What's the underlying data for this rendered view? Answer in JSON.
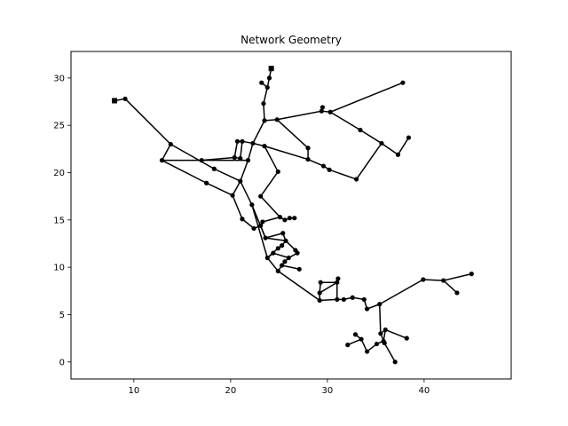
{
  "chart_data": {
    "type": "scatter",
    "title": "Network Geometry",
    "xlabel": "",
    "ylabel": "",
    "xlim": [
      3.5,
      49
    ],
    "ylim": [
      -1.8,
      32.8
    ],
    "xticks": [
      10,
      20,
      30,
      40
    ],
    "yticks": [
      0,
      5,
      10,
      15,
      20,
      25,
      30
    ],
    "grid": false,
    "legend": "none",
    "colors": {
      "line": "#000000",
      "node": "#000000",
      "frame": "#000000"
    },
    "reservoirs": [
      {
        "id": "R1",
        "x": 8.0,
        "y": 27.6
      },
      {
        "id": "R2",
        "x": 24.2,
        "y": 31.0
      }
    ],
    "nodes": [
      {
        "id": "a1",
        "x": 9.1,
        "y": 27.8
      },
      {
        "id": "a2",
        "x": 13.8,
        "y": 23.0
      },
      {
        "id": "a3",
        "x": 12.9,
        "y": 21.3
      },
      {
        "id": "a4",
        "x": 18.3,
        "y": 20.4
      },
      {
        "id": "a5",
        "x": 17.5,
        "y": 18.9
      },
      {
        "id": "a6",
        "x": 20.2,
        "y": 17.6
      },
      {
        "id": "a7",
        "x": 17.0,
        "y": 21.3
      },
      {
        "id": "a8",
        "x": 21.0,
        "y": 19.1
      },
      {
        "id": "b1",
        "x": 24.0,
        "y": 30.0
      },
      {
        "id": "b2",
        "x": 23.2,
        "y": 29.5
      },
      {
        "id": "b3",
        "x": 23.8,
        "y": 29.0
      },
      {
        "id": "b4",
        "x": 23.4,
        "y": 27.3
      },
      {
        "id": "b5",
        "x": 23.5,
        "y": 25.5
      },
      {
        "id": "b6",
        "x": 24.8,
        "y": 25.6
      },
      {
        "id": "b7",
        "x": 22.3,
        "y": 23.1
      },
      {
        "id": "b8",
        "x": 23.5,
        "y": 22.8
      },
      {
        "id": "b9",
        "x": 20.7,
        "y": 23.3
      },
      {
        "id": "b10",
        "x": 21.2,
        "y": 23.3
      },
      {
        "id": "b11",
        "x": 20.4,
        "y": 21.6
      },
      {
        "id": "b12",
        "x": 21.0,
        "y": 21.5
      },
      {
        "id": "b13",
        "x": 21.8,
        "y": 21.3
      },
      {
        "id": "b14",
        "x": 24.9,
        "y": 20.1
      },
      {
        "id": "b15",
        "x": 23.1,
        "y": 17.5
      },
      {
        "id": "c1",
        "x": 29.5,
        "y": 26.9
      },
      {
        "id": "c2",
        "x": 29.4,
        "y": 26.5
      },
      {
        "id": "c3",
        "x": 30.3,
        "y": 26.4
      },
      {
        "id": "c4",
        "x": 37.8,
        "y": 29.5
      },
      {
        "id": "c5",
        "x": 33.4,
        "y": 24.5
      },
      {
        "id": "c6",
        "x": 35.6,
        "y": 23.1
      },
      {
        "id": "c7",
        "x": 37.3,
        "y": 21.9
      },
      {
        "id": "c8",
        "x": 38.4,
        "y": 23.7
      },
      {
        "id": "c9",
        "x": 28.0,
        "y": 22.6
      },
      {
        "id": "c10",
        "x": 28.0,
        "y": 21.4
      },
      {
        "id": "c11",
        "x": 29.6,
        "y": 20.7
      },
      {
        "id": "c12",
        "x": 30.2,
        "y": 20.3
      },
      {
        "id": "c13",
        "x": 33.0,
        "y": 19.3
      },
      {
        "id": "d1",
        "x": 21.2,
        "y": 15.1
      },
      {
        "id": "d2",
        "x": 22.2,
        "y": 16.6
      },
      {
        "id": "d3",
        "x": 22.4,
        "y": 14.1
      },
      {
        "id": "d4",
        "x": 23.1,
        "y": 14.4
      },
      {
        "id": "d5",
        "x": 23.3,
        "y": 14.8
      },
      {
        "id": "d6",
        "x": 25.1,
        "y": 15.3
      },
      {
        "id": "d7",
        "x": 25.6,
        "y": 15.0
      },
      {
        "id": "d8",
        "x": 26.1,
        "y": 15.2
      },
      {
        "id": "d9",
        "x": 26.6,
        "y": 15.2
      },
      {
        "id": "d10",
        "x": 23.6,
        "y": 13.1
      },
      {
        "id": "d11",
        "x": 25.4,
        "y": 13.6
      },
      {
        "id": "d12",
        "x": 25.7,
        "y": 12.8
      },
      {
        "id": "d13",
        "x": 25.3,
        "y": 12.3
      },
      {
        "id": "d14",
        "x": 24.9,
        "y": 12.0
      },
      {
        "id": "d15",
        "x": 26.7,
        "y": 11.8
      },
      {
        "id": "d16",
        "x": 26.9,
        "y": 11.5
      },
      {
        "id": "d17",
        "x": 24.4,
        "y": 11.5
      },
      {
        "id": "d18",
        "x": 23.8,
        "y": 11.0
      },
      {
        "id": "d19",
        "x": 26.0,
        "y": 11.0
      },
      {
        "id": "d20",
        "x": 25.6,
        "y": 10.6
      },
      {
        "id": "d21",
        "x": 25.3,
        "y": 10.2
      },
      {
        "id": "d22",
        "x": 24.9,
        "y": 9.6
      },
      {
        "id": "d23",
        "x": 27.1,
        "y": 9.8
      },
      {
        "id": "e1",
        "x": 29.3,
        "y": 8.4
      },
      {
        "id": "e2",
        "x": 31.1,
        "y": 8.8
      },
      {
        "id": "e3",
        "x": 31.0,
        "y": 8.4
      },
      {
        "id": "e4",
        "x": 29.2,
        "y": 7.3
      },
      {
        "id": "e5",
        "x": 29.2,
        "y": 6.5
      },
      {
        "id": "e6",
        "x": 31.0,
        "y": 6.6
      },
      {
        "id": "e7",
        "x": 31.7,
        "y": 6.6
      },
      {
        "id": "e8",
        "x": 32.6,
        "y": 6.8
      },
      {
        "id": "e9",
        "x": 33.8,
        "y": 6.6
      },
      {
        "id": "f1",
        "x": 34.1,
        "y": 5.6
      },
      {
        "id": "f2",
        "x": 35.4,
        "y": 6.1
      },
      {
        "id": "f3",
        "x": 39.9,
        "y": 8.7
      },
      {
        "id": "f4",
        "x": 42.0,
        "y": 8.6
      },
      {
        "id": "f5",
        "x": 43.4,
        "y": 7.3
      },
      {
        "id": "f6",
        "x": 44.9,
        "y": 9.3
      },
      {
        "id": "f7",
        "x": 35.5,
        "y": 3.0
      },
      {
        "id": "f8",
        "x": 36.0,
        "y": 3.4
      },
      {
        "id": "f9",
        "x": 38.2,
        "y": 2.5
      },
      {
        "id": "f10",
        "x": 32.1,
        "y": 1.8
      },
      {
        "id": "f11",
        "x": 32.9,
        "y": 2.9
      },
      {
        "id": "f12",
        "x": 33.5,
        "y": 2.4
      },
      {
        "id": "f13",
        "x": 34.1,
        "y": 1.1
      },
      {
        "id": "f14",
        "x": 35.1,
        "y": 1.9
      },
      {
        "id": "f15",
        "x": 35.8,
        "y": 2.2
      },
      {
        "id": "f16",
        "x": 35.9,
        "y": 2.0
      },
      {
        "id": "f17",
        "x": 37.0,
        "y": 0.0
      }
    ],
    "edges": [
      [
        "R1",
        "a1"
      ],
      [
        "a1",
        "a2"
      ],
      [
        "a2",
        "a3"
      ],
      [
        "a3",
        "a5"
      ],
      [
        "a5",
        "a6"
      ],
      [
        "a2",
        "a4"
      ],
      [
        "a4",
        "a8"
      ],
      [
        "a6",
        "a8"
      ],
      [
        "a3",
        "a7"
      ],
      [
        "a7",
        "b11"
      ],
      [
        "b11",
        "b12"
      ],
      [
        "a7",
        "b13"
      ],
      [
        "R2",
        "b1"
      ],
      [
        "b1",
        "b3"
      ],
      [
        "b2",
        "b3"
      ],
      [
        "b3",
        "b4"
      ],
      [
        "b4",
        "b5"
      ],
      [
        "b5",
        "b6"
      ],
      [
        "b6",
        "c2"
      ],
      [
        "c2",
        "c1"
      ],
      [
        "c2",
        "c3"
      ],
      [
        "c3",
        "c4"
      ],
      [
        "c3",
        "c5"
      ],
      [
        "c5",
        "c6"
      ],
      [
        "c6",
        "c7"
      ],
      [
        "c6",
        "c13"
      ],
      [
        "c8",
        "c7"
      ],
      [
        "b6",
        "c9"
      ],
      [
        "c9",
        "c10"
      ],
      [
        "c10",
        "c11"
      ],
      [
        "c11",
        "c12"
      ],
      [
        "c12",
        "c13"
      ],
      [
        "b5",
        "b7"
      ],
      [
        "b7",
        "b10"
      ],
      [
        "b10",
        "b9"
      ],
      [
        "b9",
        "b11"
      ],
      [
        "b10",
        "b12"
      ],
      [
        "b7",
        "b8"
      ],
      [
        "b8",
        "c10"
      ],
      [
        "b7",
        "b13"
      ],
      [
        "b13",
        "a8"
      ],
      [
        "b8",
        "b14"
      ],
      [
        "b14",
        "b15"
      ],
      [
        "b15",
        "d6"
      ],
      [
        "a6",
        "d1"
      ],
      [
        "d1",
        "d3"
      ],
      [
        "d3",
        "d4"
      ],
      [
        "d4",
        "d5"
      ],
      [
        "d5",
        "d6"
      ],
      [
        "d6",
        "d7"
      ],
      [
        "d7",
        "d8"
      ],
      [
        "d8",
        "d9"
      ],
      [
        "a8",
        "d2"
      ],
      [
        "d2",
        "d10"
      ],
      [
        "d10",
        "d11"
      ],
      [
        "d11",
        "d12"
      ],
      [
        "d12",
        "d13"
      ],
      [
        "d13",
        "d14"
      ],
      [
        "d14",
        "d18"
      ],
      [
        "d4",
        "d10"
      ],
      [
        "d2",
        "d18"
      ],
      [
        "d10",
        "d12"
      ],
      [
        "d12",
        "d15"
      ],
      [
        "d15",
        "d16"
      ],
      [
        "d16",
        "d19"
      ],
      [
        "d19",
        "d20"
      ],
      [
        "d20",
        "d21"
      ],
      [
        "d21",
        "d22"
      ],
      [
        "d17",
        "d18"
      ],
      [
        "d17",
        "d19"
      ],
      [
        "d18",
        "d22"
      ],
      [
        "d21",
        "d23"
      ],
      [
        "d22",
        "e5"
      ],
      [
        "e5",
        "e4"
      ],
      [
        "e4",
        "e1"
      ],
      [
        "e1",
        "e3"
      ],
      [
        "e3",
        "e2"
      ],
      [
        "e4",
        "e3"
      ],
      [
        "e3",
        "e6"
      ],
      [
        "e5",
        "e6"
      ],
      [
        "e6",
        "e7"
      ],
      [
        "e7",
        "e8"
      ],
      [
        "e8",
        "e9"
      ],
      [
        "e9",
        "f1"
      ],
      [
        "f1",
        "f2"
      ],
      [
        "f2",
        "f3"
      ],
      [
        "f3",
        "f4"
      ],
      [
        "f4",
        "f5"
      ],
      [
        "f4",
        "f6"
      ],
      [
        "f2",
        "f7"
      ],
      [
        "f7",
        "f8"
      ],
      [
        "f8",
        "f9"
      ],
      [
        "f7",
        "f16"
      ],
      [
        "f16",
        "f17"
      ],
      [
        "f10",
        "f12"
      ],
      [
        "f11",
        "f12"
      ],
      [
        "f12",
        "f13"
      ],
      [
        "f13",
        "f14"
      ],
      [
        "f14",
        "f15"
      ],
      [
        "f15",
        "f8"
      ]
    ]
  }
}
